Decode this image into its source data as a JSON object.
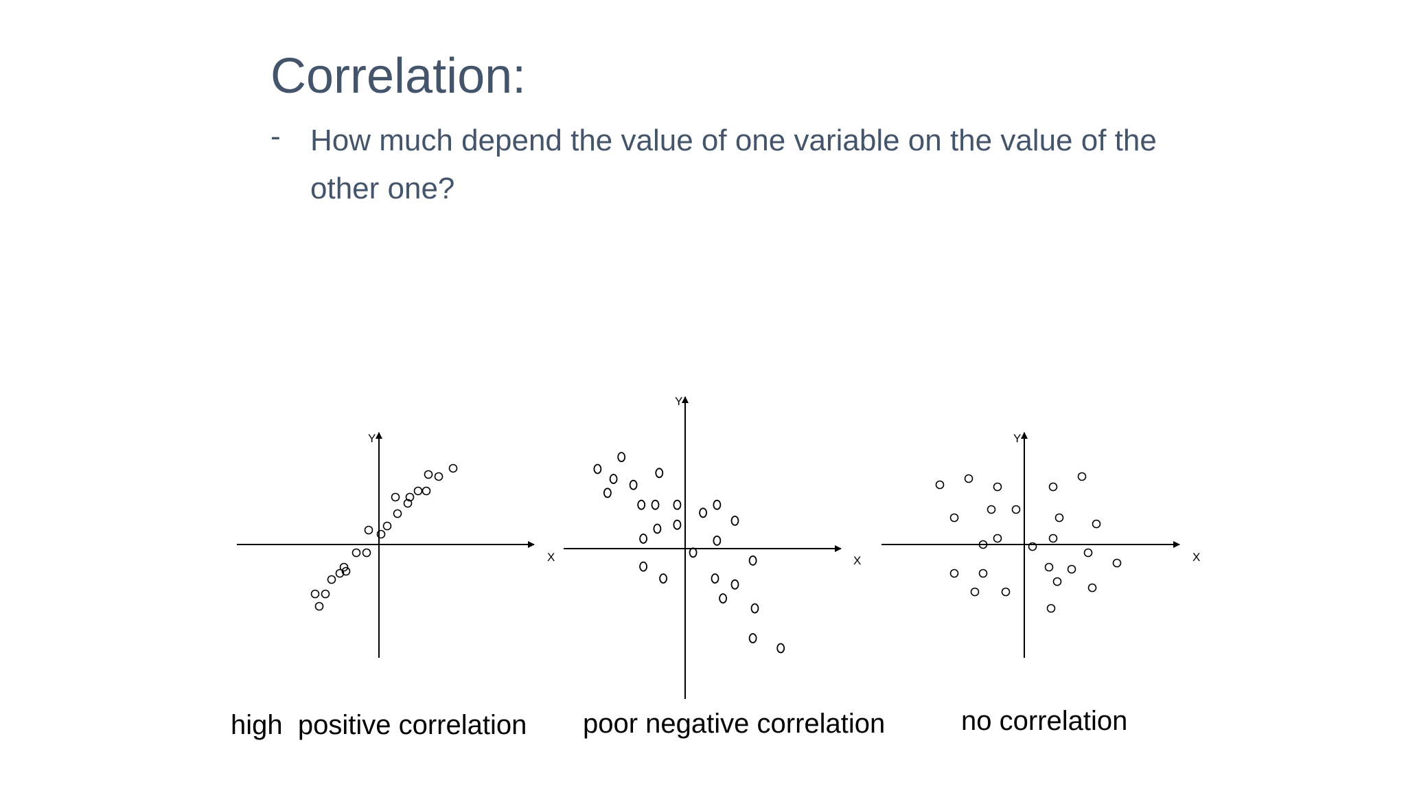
{
  "slide": {
    "title": "Correlation:",
    "bullet_marker": "-",
    "bullet_text": "How much depend the value of one variable on the value of the other one?"
  },
  "chart_data": [
    {
      "type": "scatter",
      "title": "high  positive correlation",
      "xlabel": "X",
      "ylabel": "Y",
      "xlim": [
        -5.5,
        6
      ],
      "ylim": [
        -4.5,
        4.5
      ],
      "grid": false,
      "points": [
        [
          -3.1,
          -2.4
        ],
        [
          -2.6,
          -2.4
        ],
        [
          -2.9,
          -3.0
        ],
        [
          -2.3,
          -1.7
        ],
        [
          -1.9,
          -1.4
        ],
        [
          -1.7,
          -1.1
        ],
        [
          -1.6,
          -1.3
        ],
        [
          -1.1,
          -0.4
        ],
        [
          -0.6,
          -0.4
        ],
        [
          -0.5,
          0.7
        ],
        [
          0.1,
          0.5
        ],
        [
          0.4,
          0.9
        ],
        [
          0.8,
          2.3
        ],
        [
          0.9,
          1.5
        ],
        [
          1.4,
          2.0
        ],
        [
          1.5,
          2.3
        ],
        [
          1.9,
          2.6
        ],
        [
          2.3,
          2.6
        ],
        [
          2.4,
          3.4
        ],
        [
          2.9,
          3.3
        ],
        [
          3.6,
          3.7
        ]
      ]
    },
    {
      "type": "scatter",
      "title": "poor negative correlation",
      "xlabel": "X",
      "ylabel": "Y",
      "xlim": [
        -5,
        6
      ],
      "ylim": [
        -6,
        6
      ],
      "grid": false,
      "points": [
        [
          -4.4,
          4.0
        ],
        [
          -3.9,
          2.8
        ],
        [
          -3.6,
          3.5
        ],
        [
          -3.2,
          4.6
        ],
        [
          -2.6,
          3.2
        ],
        [
          -2.2,
          2.2
        ],
        [
          -1.5,
          2.2
        ],
        [
          -1.3,
          3.8
        ],
        [
          -1.4,
          1.0
        ],
        [
          -2.1,
          0.5
        ],
        [
          -2.1,
          -0.9
        ],
        [
          -1.1,
          -1.5
        ],
        [
          -0.4,
          2.2
        ],
        [
          -0.4,
          1.2
        ],
        [
          0.4,
          -0.2
        ],
        [
          0.9,
          1.8
        ],
        [
          1.6,
          2.2
        ],
        [
          1.6,
          0.4
        ],
        [
          2.5,
          1.4
        ],
        [
          1.5,
          -1.5
        ],
        [
          2.5,
          -1.8
        ],
        [
          1.9,
          -2.5
        ],
        [
          3.4,
          -0.6
        ],
        [
          3.5,
          -3.0
        ],
        [
          3.4,
          -4.5
        ],
        [
          4.8,
          -5.0
        ]
      ]
    },
    {
      "type": "scatter",
      "title": "no correlation",
      "xlabel": "X",
      "ylabel": "Y",
      "xlim": [
        -5.5,
        6
      ],
      "ylim": [
        -4.5,
        4.5
      ],
      "grid": false,
      "points": [
        [
          -4.1,
          2.9
        ],
        [
          -2.7,
          3.2
        ],
        [
          -1.3,
          2.8
        ],
        [
          -1.6,
          1.7
        ],
        [
          -0.4,
          1.7
        ],
        [
          -3.4,
          1.3
        ],
        [
          -1.3,
          0.3
        ],
        [
          -2.0,
          0.0
        ],
        [
          -3.4,
          -1.4
        ],
        [
          -2.0,
          -1.4
        ],
        [
          -2.4,
          -2.3
        ],
        [
          -0.9,
          -2.3
        ],
        [
          1.4,
          2.8
        ],
        [
          2.8,
          3.3
        ],
        [
          1.7,
          1.3
        ],
        [
          3.5,
          1.0
        ],
        [
          1.4,
          0.3
        ],
        [
          0.4,
          -0.1
        ],
        [
          3.1,
          -0.4
        ],
        [
          4.5,
          -0.9
        ],
        [
          1.2,
          -1.1
        ],
        [
          2.3,
          -1.2
        ],
        [
          1.6,
          -1.8
        ],
        [
          3.3,
          -2.1
        ],
        [
          1.3,
          -3.1
        ]
      ]
    }
  ]
}
